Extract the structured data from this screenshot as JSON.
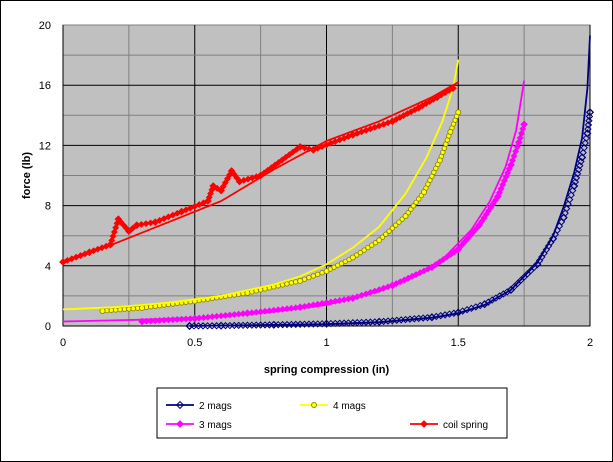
{
  "chart_data": {
    "type": "scatter",
    "title": "",
    "xlabel": "spring compression (in)",
    "ylabel": "force (lb)",
    "xlim": [
      0,
      2
    ],
    "ylim": [
      0,
      20
    ],
    "x_ticks": [
      0,
      0.5,
      1,
      1.5,
      2
    ],
    "y_ticks": [
      0,
      4,
      8,
      12,
      16,
      20
    ],
    "grid": true,
    "legend_position": "bottom",
    "series": [
      {
        "name": "2 mags",
        "color": "#000080",
        "marker": "diamond-open",
        "line_points": [
          [
            0.48,
            0.0
          ],
          [
            0.8,
            0.07
          ],
          [
            1.0,
            0.12
          ],
          [
            1.2,
            0.25
          ],
          [
            1.4,
            0.55
          ],
          [
            1.5,
            0.85
          ],
          [
            1.6,
            1.4
          ],
          [
            1.7,
            2.4
          ],
          [
            1.8,
            4.2
          ],
          [
            1.86,
            6.0
          ],
          [
            1.9,
            7.9
          ],
          [
            1.94,
            10.2
          ],
          [
            1.97,
            12.5
          ],
          [
            1.99,
            15.8
          ],
          [
            2.0,
            19.3
          ]
        ],
        "marker_points": [
          [
            0.48,
            0.0
          ],
          [
            0.6,
            0.02
          ],
          [
            0.8,
            0.08
          ],
          [
            1.0,
            0.15
          ],
          [
            1.2,
            0.28
          ],
          [
            1.4,
            0.58
          ],
          [
            1.5,
            0.9
          ],
          [
            1.6,
            1.45
          ],
          [
            1.7,
            2.4
          ],
          [
            1.8,
            4.1
          ],
          [
            1.86,
            5.8
          ],
          [
            1.9,
            7.2
          ],
          [
            1.94,
            9.3
          ],
          [
            1.97,
            11.2
          ],
          [
            1.99,
            12.8
          ],
          [
            2.0,
            14.2
          ]
        ]
      },
      {
        "name": "4 mags",
        "color": "#ffff00",
        "marker": "circle",
        "line_points": [
          [
            0.0,
            1.1
          ],
          [
            0.2,
            1.25
          ],
          [
            0.4,
            1.55
          ],
          [
            0.6,
            2.0
          ],
          [
            0.8,
            2.75
          ],
          [
            0.9,
            3.3
          ],
          [
            1.0,
            4.1
          ],
          [
            1.1,
            5.2
          ],
          [
            1.2,
            6.6
          ],
          [
            1.3,
            8.8
          ],
          [
            1.38,
            11.2
          ],
          [
            1.44,
            13.6
          ],
          [
            1.48,
            15.8
          ],
          [
            1.5,
            17.7
          ]
        ],
        "marker_points": [
          [
            0.15,
            1.0
          ],
          [
            0.3,
            1.2
          ],
          [
            0.5,
            1.65
          ],
          [
            0.7,
            2.2
          ],
          [
            0.9,
            3.0
          ],
          [
            1.0,
            3.65
          ],
          [
            1.1,
            4.55
          ],
          [
            1.2,
            5.7
          ],
          [
            1.3,
            7.3
          ],
          [
            1.37,
            8.9
          ],
          [
            1.43,
            11.0
          ],
          [
            1.47,
            12.9
          ],
          [
            1.5,
            14.2
          ]
        ]
      },
      {
        "name": "3 mags",
        "color": "#ff00ff",
        "marker": "diamond",
        "line_points": [
          [
            0.0,
            0.3
          ],
          [
            0.3,
            0.42
          ],
          [
            0.6,
            0.62
          ],
          [
            0.8,
            0.95
          ],
          [
            1.0,
            1.4
          ],
          [
            1.2,
            2.3
          ],
          [
            1.35,
            3.4
          ],
          [
            1.45,
            4.6
          ],
          [
            1.55,
            6.4
          ],
          [
            1.62,
            8.3
          ],
          [
            1.68,
            10.6
          ],
          [
            1.72,
            13.0
          ],
          [
            1.75,
            16.3
          ]
        ],
        "marker_points": [
          [
            0.3,
            0.3
          ],
          [
            0.5,
            0.5
          ],
          [
            0.7,
            0.85
          ],
          [
            0.9,
            1.25
          ],
          [
            1.1,
            1.85
          ],
          [
            1.25,
            2.7
          ],
          [
            1.4,
            3.9
          ],
          [
            1.5,
            5.1
          ],
          [
            1.58,
            6.7
          ],
          [
            1.65,
            8.6
          ],
          [
            1.7,
            10.7
          ],
          [
            1.73,
            12.2
          ],
          [
            1.75,
            13.4
          ]
        ]
      },
      {
        "name": "coil spring",
        "color": "#ff0000",
        "marker": "diamond",
        "line_points": [
          [
            0.0,
            4.2
          ],
          [
            0.2,
            5.5
          ],
          [
            0.4,
            6.9
          ],
          [
            0.6,
            8.3
          ],
          [
            0.8,
            10.4
          ],
          [
            1.0,
            12.3
          ],
          [
            1.2,
            13.6
          ],
          [
            1.4,
            15.2
          ],
          [
            1.5,
            16.2
          ]
        ],
        "marker_points": [
          [
            0.0,
            4.25
          ],
          [
            0.1,
            4.9
          ],
          [
            0.18,
            5.4
          ],
          [
            0.21,
            7.1
          ],
          [
            0.25,
            6.3
          ],
          [
            0.28,
            6.7
          ],
          [
            0.35,
            6.9
          ],
          [
            0.45,
            7.6
          ],
          [
            0.55,
            8.3
          ],
          [
            0.57,
            9.3
          ],
          [
            0.6,
            9.0
          ],
          [
            0.64,
            10.3
          ],
          [
            0.67,
            9.6
          ],
          [
            0.75,
            10.0
          ],
          [
            0.9,
            11.9
          ],
          [
            0.95,
            11.7
          ],
          [
            1.1,
            12.7
          ],
          [
            1.25,
            13.6
          ],
          [
            1.35,
            14.5
          ],
          [
            1.42,
            15.2
          ],
          [
            1.48,
            15.8
          ]
        ]
      }
    ]
  }
}
